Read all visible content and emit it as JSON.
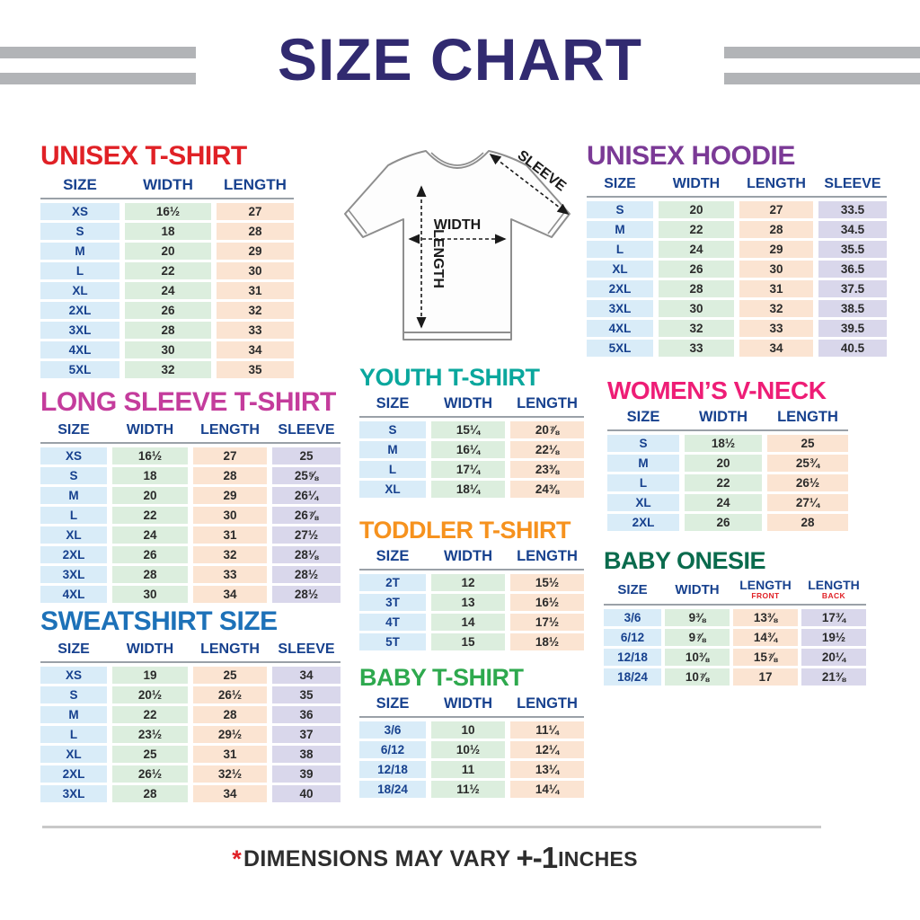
{
  "page_title": "SIZE CHART",
  "palette": {
    "css_vars": {
      "title": "#312a70",
      "header-text": "#17418e",
      "size-text": "#17418e",
      "num-text": "#2b2b2b",
      "bar": "#b2b4b7",
      "rule": "#c9c9c9",
      "header-line": "#9aa1a8",
      "sub-red": "#e02126",
      "footer-text": "#2e2e2e"
    },
    "column_colors": [
      "#d9ecf8",
      "#dceede",
      "#fbe4d2",
      "#d9d7eb"
    ]
  },
  "diagram": {
    "width_label": "WIDTH",
    "length_label": "LENGTH",
    "sleeve_label": "SLEEVE"
  },
  "sections": {
    "unisex_tshirt": {
      "title": "UNISEX T-SHIRT",
      "title_color": "#e02126",
      "headers": [
        "SIZE",
        "WIDTH",
        "LENGTH"
      ],
      "rows": [
        [
          "XS",
          "16½",
          "27"
        ],
        [
          "S",
          "18",
          "28"
        ],
        [
          "M",
          "20",
          "29"
        ],
        [
          "L",
          "22",
          "30"
        ],
        [
          "XL",
          "24",
          "31"
        ],
        [
          "2XL",
          "26",
          "32"
        ],
        [
          "3XL",
          "28",
          "33"
        ],
        [
          "4XL",
          "30",
          "34"
        ],
        [
          "5XL",
          "32",
          "35"
        ]
      ]
    },
    "unisex_hoodie": {
      "title": "UNISEX HOODIE",
      "title_color": "#7b3a96",
      "headers": [
        "SIZE",
        "WIDTH",
        "LENGTH",
        "SLEEVE"
      ],
      "rows": [
        [
          "S",
          "20",
          "27",
          "33.5"
        ],
        [
          "M",
          "22",
          "28",
          "34.5"
        ],
        [
          "L",
          "24",
          "29",
          "35.5"
        ],
        [
          "XL",
          "26",
          "30",
          "36.5"
        ],
        [
          "2XL",
          "28",
          "31",
          "37.5"
        ],
        [
          "3XL",
          "30",
          "32",
          "38.5"
        ],
        [
          "4XL",
          "32",
          "33",
          "39.5"
        ],
        [
          "5XL",
          "33",
          "34",
          "40.5"
        ]
      ]
    },
    "long_sleeve_tshirt": {
      "title": "LONG SLEEVE T-SHIRT",
      "title_color": "#c43c9c",
      "headers": [
        "SIZE",
        "WIDTH",
        "LENGTH",
        "SLEEVE"
      ],
      "rows": [
        [
          "XS",
          "16½",
          "27",
          "25"
        ],
        [
          "S",
          "18",
          "28",
          "25⅝"
        ],
        [
          "M",
          "20",
          "29",
          "26¼"
        ],
        [
          "L",
          "22",
          "30",
          "26⅞"
        ],
        [
          "XL",
          "24",
          "31",
          "27½"
        ],
        [
          "2XL",
          "26",
          "32",
          "28⅛"
        ],
        [
          "3XL",
          "28",
          "33",
          "28½"
        ],
        [
          "4XL",
          "30",
          "34",
          "28½"
        ]
      ]
    },
    "youth_tshirt": {
      "title": "YOUTH T-SHIRT",
      "title_color": "#0aa79d",
      "headers": [
        "SIZE",
        "WIDTH",
        "LENGTH"
      ],
      "rows": [
        [
          "S",
          "15¼",
          "20⅞"
        ],
        [
          "M",
          "16¼",
          "22⅛"
        ],
        [
          "L",
          "17¼",
          "23⅜"
        ],
        [
          "XL",
          "18¼",
          "24⅜"
        ]
      ]
    },
    "womens_vneck": {
      "title": "WOMEN’S V-NECK",
      "title_color": "#ee1d76",
      "headers": [
        "SIZE",
        "WIDTH",
        "LENGTH"
      ],
      "rows": [
        [
          "S",
          "18½",
          "25"
        ],
        [
          "M",
          "20",
          "25¾"
        ],
        [
          "L",
          "22",
          "26½"
        ],
        [
          "XL",
          "24",
          "27¼"
        ],
        [
          "2XL",
          "26",
          "28"
        ]
      ]
    },
    "toddler_tshirt": {
      "title": "TODDLER T-SHIRT",
      "title_color": "#f6921e",
      "headers": [
        "SIZE",
        "WIDTH",
        "LENGTH"
      ],
      "rows": [
        [
          "2T",
          "12",
          "15½"
        ],
        [
          "3T",
          "13",
          "16½"
        ],
        [
          "4T",
          "14",
          "17½"
        ],
        [
          "5T",
          "15",
          "18½"
        ]
      ]
    },
    "sweatshirt": {
      "title": "SWEATSHIRT SIZE",
      "title_color": "#1d71b8",
      "headers": [
        "SIZE",
        "WIDTH",
        "LENGTH",
        "SLEEVE"
      ],
      "rows": [
        [
          "XS",
          "19",
          "25",
          "34"
        ],
        [
          "S",
          "20½",
          "26½",
          "35"
        ],
        [
          "M",
          "22",
          "28",
          "36"
        ],
        [
          "L",
          "23½",
          "29½",
          "37"
        ],
        [
          "XL",
          "25",
          "31",
          "38"
        ],
        [
          "2XL",
          "26½",
          "32½",
          "39"
        ],
        [
          "3XL",
          "28",
          "34",
          "40"
        ]
      ]
    },
    "baby_tshirt": {
      "title": "BABY T-SHIRT",
      "title_color": "#2ea94e",
      "headers": [
        "SIZE",
        "WIDTH",
        "LENGTH"
      ],
      "rows": [
        [
          "3/6",
          "10",
          "11¼"
        ],
        [
          "6/12",
          "10½",
          "12¼"
        ],
        [
          "12/18",
          "11",
          "13¼"
        ],
        [
          "18/24",
          "11½",
          "14¼"
        ]
      ]
    },
    "baby_onesie": {
      "title": "BABY ONESIE",
      "title_color": "#0a6b4d",
      "headers": [
        "SIZE",
        "WIDTH",
        {
          "label": "LENGTH",
          "sub": "FRONT"
        },
        {
          "label": "LENGTH",
          "sub": "BACK"
        }
      ],
      "rows": [
        [
          "3/6",
          "9⅜",
          "13⅜",
          "17¾"
        ],
        [
          "6/12",
          "9⅞",
          "14¾",
          "19½"
        ],
        [
          "12/18",
          "10⅜",
          "15⅞",
          "20¼"
        ],
        [
          "18/24",
          "10⅞",
          "17",
          "21⅜"
        ]
      ]
    }
  },
  "footer": {
    "asterisk": "*",
    "text": "DIMENSIONS MAY VARY",
    "tolerance": "+-1",
    "unit": "INCHES"
  }
}
